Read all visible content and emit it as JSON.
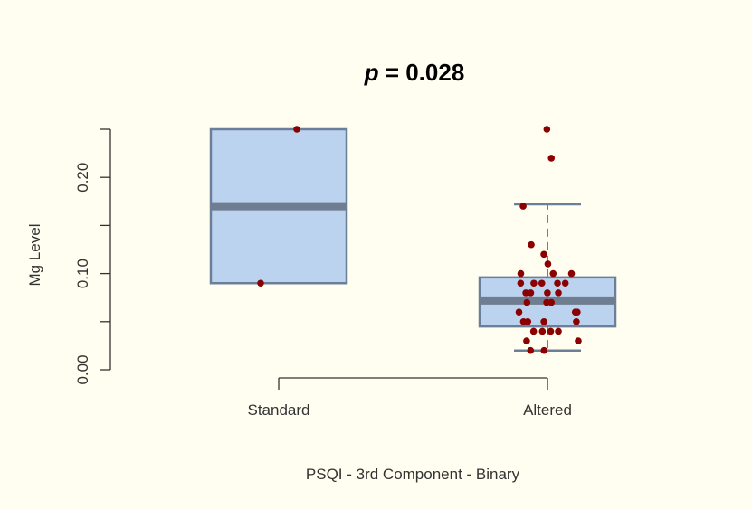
{
  "chart_data": {
    "type": "box",
    "title_prefix": "p",
    "title_rest": " = 0.028",
    "xlabel": "PSQI - 3rd Component - Binary",
    "ylabel": "Mg Level",
    "categories": [
      "Standard",
      "Altered"
    ],
    "yticks": [
      "0.00",
      "0.10",
      "0.20"
    ],
    "ylim": [
      0.0,
      0.25
    ],
    "grid": false,
    "colors": {
      "background": "#fffef0",
      "box_fill": "#bcd3ef",
      "box_border": "#6b7f99",
      "median": "#6e7d90",
      "points": "#8b0000"
    },
    "boxes": [
      {
        "category": "Standard",
        "q1": 0.09,
        "median": 0.17,
        "q3": 0.25,
        "whisker_low": 0.09,
        "whisker_high": 0.25
      },
      {
        "category": "Altered",
        "q1": 0.045,
        "median": 0.072,
        "q3": 0.096,
        "whisker_low": 0.02,
        "whisker_high": 0.172
      }
    ],
    "points": [
      {
        "category": "Standard",
        "values": [
          0.25,
          0.09
        ]
      },
      {
        "category": "Altered",
        "values": [
          0.25,
          0.22,
          0.17,
          0.13,
          0.12,
          0.11,
          0.1,
          0.1,
          0.1,
          0.09,
          0.09,
          0.09,
          0.09,
          0.09,
          0.08,
          0.08,
          0.08,
          0.08,
          0.07,
          0.07,
          0.07,
          0.06,
          0.06,
          0.06,
          0.05,
          0.05,
          0.05,
          0.05,
          0.04,
          0.04,
          0.04,
          0.04,
          0.03,
          0.03,
          0.02,
          0.02
        ]
      }
    ]
  }
}
